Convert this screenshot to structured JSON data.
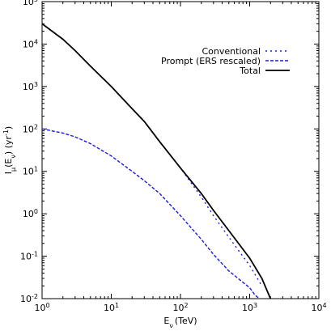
{
  "chart_data": {
    "type": "line",
    "title": "",
    "xlabel": "E_ν (TeV)",
    "ylabel": "I_μ(E_ν) (yr^-1)",
    "x_scale": "log",
    "y_scale": "log",
    "xlim": [
      1,
      10000
    ],
    "ylim": [
      0.01,
      100000
    ],
    "x_ticks": [
      {
        "value": 1,
        "base": "10",
        "exp": "0"
      },
      {
        "value": 10,
        "base": "10",
        "exp": "1"
      },
      {
        "value": 100,
        "base": "10",
        "exp": "2"
      },
      {
        "value": 1000,
        "base": "10",
        "exp": "3"
      },
      {
        "value": 10000,
        "base": "10",
        "exp": "4"
      }
    ],
    "y_ticks": [
      {
        "value": 0.01,
        "base": "10",
        "exp": "-2"
      },
      {
        "value": 0.1,
        "base": "10",
        "exp": "-1"
      },
      {
        "value": 1,
        "base": "10",
        "exp": "0"
      },
      {
        "value": 10,
        "base": "10",
        "exp": "1"
      },
      {
        "value": 100,
        "base": "10",
        "exp": "2"
      },
      {
        "value": 1000,
        "base": "10",
        "exp": "3"
      },
      {
        "value": 10000,
        "base": "10",
        "exp": "4"
      },
      {
        "value": 100000,
        "base": "10",
        "exp": "5"
      }
    ],
    "legend_position": "top-right",
    "grid": false,
    "series": [
      {
        "name": "Conventional",
        "color": "#1a1adc",
        "dash": "dotted",
        "x": [
          1,
          2,
          3,
          5,
          10,
          20,
          30,
          50,
          100,
          200,
          300,
          500,
          1000,
          1500
        ],
        "y": [
          30000,
          13000,
          7000,
          3000,
          1000,
          300,
          150,
          50,
          12,
          2.5,
          0.9,
          0.28,
          0.06,
          0.02
        ]
      },
      {
        "name": "Prompt (ERS rescaled)",
        "color": "#1a1adc",
        "dash": "dashed",
        "x": [
          1,
          2,
          3,
          5,
          10,
          20,
          30,
          50,
          100,
          200,
          300,
          500,
          1000,
          1200,
          1500
        ],
        "y": [
          100,
          80,
          65,
          45,
          23,
          10,
          6,
          3,
          0.9,
          0.25,
          0.11,
          0.045,
          0.018,
          0.012,
          0.009
        ]
      },
      {
        "name": "Total",
        "color": "#000000",
        "dash": "solid",
        "x": [
          1,
          2,
          3,
          5,
          10,
          20,
          30,
          50,
          100,
          200,
          300,
          500,
          1000,
          1500,
          2000
        ],
        "y": [
          30000,
          13000,
          7000,
          3000,
          1000,
          300,
          150,
          50,
          12,
          3,
          1.2,
          0.4,
          0.09,
          0.03,
          0.01
        ]
      }
    ]
  }
}
